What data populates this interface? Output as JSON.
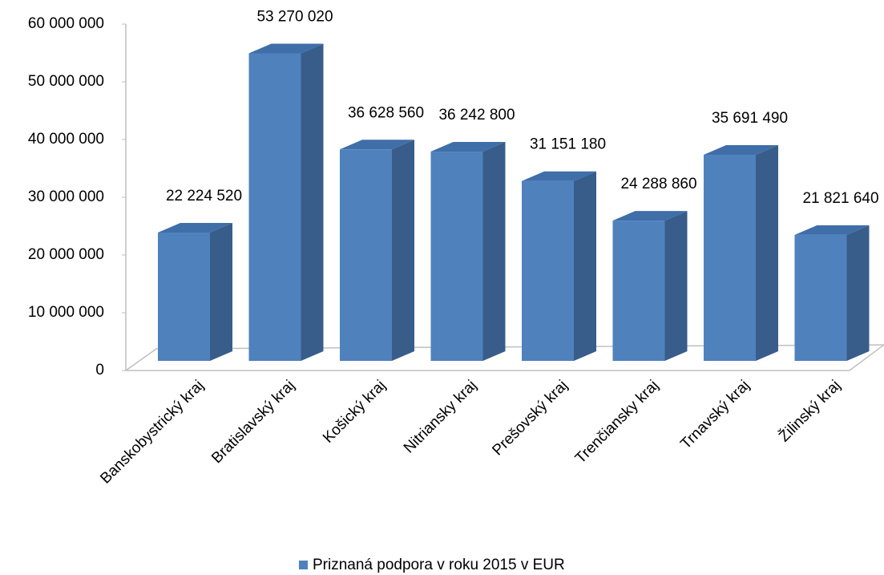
{
  "chart_data": {
    "type": "bar3d",
    "categories": [
      "Banskobystrický kraj",
      "Bratislavský kraj",
      "Košický kraj",
      "Nitriansky kraj",
      "Prešovský kraj",
      "Trenčiansky kraj",
      "Trnavský kraj",
      "Žilinský kraj"
    ],
    "series": [
      {
        "name": "Priznaná podpora v roku 2015 v EUR",
        "color": "#4f81bd",
        "values": [
          22224520,
          53270020,
          36628560,
          36242800,
          31151180,
          24288860,
          35691490,
          21821640
        ],
        "value_labels": [
          "22 224 520",
          "53 270 020",
          "36 628 560",
          "36 242 800",
          "31 151 180",
          "24 288 860",
          "35 691 490",
          "21 821 640"
        ]
      }
    ],
    "ylim": [
      0,
      60000000
    ],
    "yticks": [
      0,
      {
        "value": 10000000,
        "label": "10 000 000"
      },
      {
        "value": 20000000,
        "label": "20 000 000"
      },
      {
        "value": 30000000,
        "label": "30 000 000"
      },
      {
        "value": 40000000,
        "label": "40 000 000"
      },
      {
        "value": 50000000,
        "label": "50 000 000"
      },
      {
        "value": 60000000,
        "label": "60 000 000"
      }
    ],
    "legend": "bottom"
  }
}
